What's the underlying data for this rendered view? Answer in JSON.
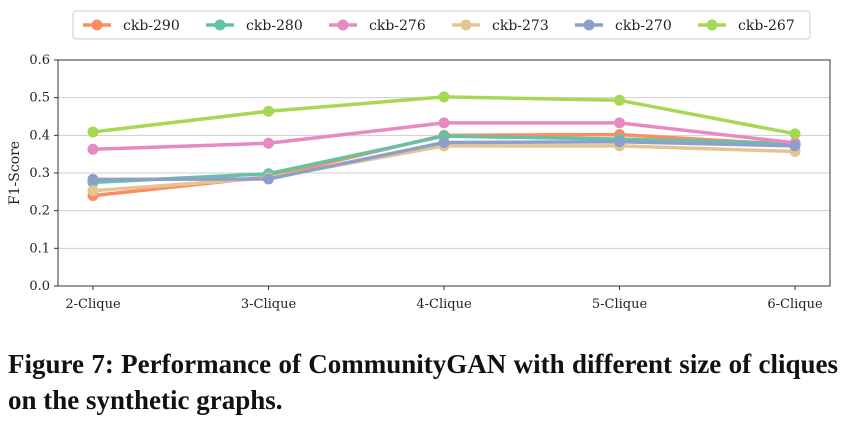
{
  "chart_data": {
    "type": "line",
    "categories": [
      "2-Clique",
      "3-Clique",
      "4-Clique",
      "5-Clique",
      "6-Clique"
    ],
    "ylabel": "F1-Score",
    "xlabel": "",
    "ylim": [
      0.0,
      0.6
    ],
    "yticks": [
      "0.0",
      "0.1",
      "0.2",
      "0.3",
      "0.4",
      "0.5",
      "0.6"
    ],
    "grid": "horizontal",
    "legend_position": "top",
    "series": [
      {
        "name": "ckb-290",
        "color": "#fc8d62",
        "values": [
          0.24,
          0.29,
          0.4,
          0.402,
          0.375
        ]
      },
      {
        "name": "ckb-280",
        "color": "#66c2a5",
        "values": [
          0.275,
          0.298,
          0.398,
          0.39,
          0.378
        ]
      },
      {
        "name": "ckb-276",
        "color": "#e78ac3",
        "values": [
          0.363,
          0.379,
          0.433,
          0.433,
          0.38
        ]
      },
      {
        "name": "ckb-273",
        "color": "#e5c494",
        "values": [
          0.253,
          0.287,
          0.372,
          0.372,
          0.357
        ]
      },
      {
        "name": "ckb-270",
        "color": "#8da0cb",
        "values": [
          0.283,
          0.284,
          0.381,
          0.383,
          0.372
        ]
      },
      {
        "name": "ckb-267",
        "color": "#a6d854",
        "values": [
          0.409,
          0.464,
          0.502,
          0.493,
          0.404
        ]
      }
    ]
  },
  "caption": "Figure 7: Performance of CommunityGAN with different size of cliques on the synthetic graphs."
}
